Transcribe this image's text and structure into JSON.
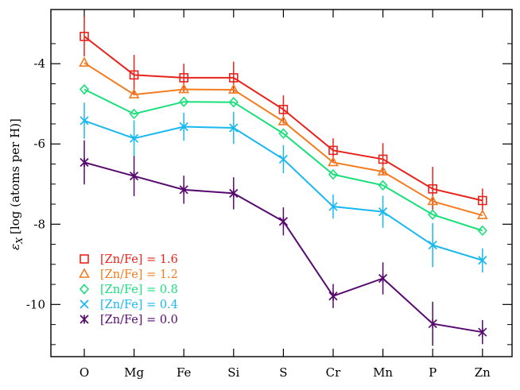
{
  "chart_data": {
    "type": "line",
    "categories": [
      "O",
      "Mg",
      "Fe",
      "Si",
      "S",
      "Cr",
      "Mn",
      "P",
      "Zn"
    ],
    "ylabel_symbol": "ε",
    "ylabel_subscript": "X",
    "ylabel_text": "[log (atoms per H)]",
    "ylim": [
      -11.3,
      -2.65
    ],
    "yticks": [
      -4,
      -6,
      -8,
      -10
    ],
    "ytick_labels": [
      "-4",
      "-6",
      "-8",
      "-10"
    ],
    "grid": false,
    "legend_position": "bottom-left",
    "series": [
      {
        "name": "[Zn/Fe] = 1.6",
        "color": "#e8231c",
        "marker": "square",
        "values": [
          -3.32,
          -4.28,
          -4.35,
          -4.35,
          -5.14,
          -6.16,
          -6.38,
          -7.12,
          -7.41
        ],
        "errors": [
          0.5,
          0.5,
          0.35,
          0.4,
          0.35,
          0.3,
          0.4,
          0.55,
          0.3
        ]
      },
      {
        "name": "[Zn/Fe] = 1.2",
        "color": "#f47c20",
        "marker": "triangle",
        "values": [
          -3.98,
          -4.77,
          -4.64,
          -4.65,
          -5.44,
          -6.46,
          -6.69,
          -7.43,
          -7.78
        ],
        "errors": [
          0,
          0,
          0,
          0,
          0,
          0,
          0,
          0,
          0
        ]
      },
      {
        "name": "[Zn/Fe] = 0.8",
        "color": "#19e07a",
        "marker": "diamond",
        "values": [
          -4.64,
          -5.25,
          -4.95,
          -4.96,
          -5.74,
          -6.76,
          -7.03,
          -7.76,
          -8.16
        ],
        "errors": [
          0,
          0,
          0,
          0,
          0,
          0,
          0,
          0,
          0
        ]
      },
      {
        "name": "[Zn/Fe] = 0.4",
        "color": "#1ab8f0",
        "marker": "x",
        "values": [
          -5.42,
          -5.86,
          -5.57,
          -5.6,
          -6.38,
          -7.56,
          -7.69,
          -8.52,
          -8.9
        ],
        "errors": [
          0.45,
          0.45,
          0.35,
          0.4,
          0.35,
          0.3,
          0.4,
          0.55,
          0.3
        ]
      },
      {
        "name": "[Zn/Fe] = 0.0",
        "color": "#560a6e",
        "marker": "asterisk",
        "values": [
          -6.46,
          -6.8,
          -7.14,
          -7.23,
          -7.93,
          -9.79,
          -9.35,
          -10.48,
          -10.69
        ],
        "errors": [
          0.55,
          0.5,
          0.35,
          0.4,
          0.35,
          0.3,
          0.4,
          0.55,
          0.3
        ]
      }
    ]
  }
}
